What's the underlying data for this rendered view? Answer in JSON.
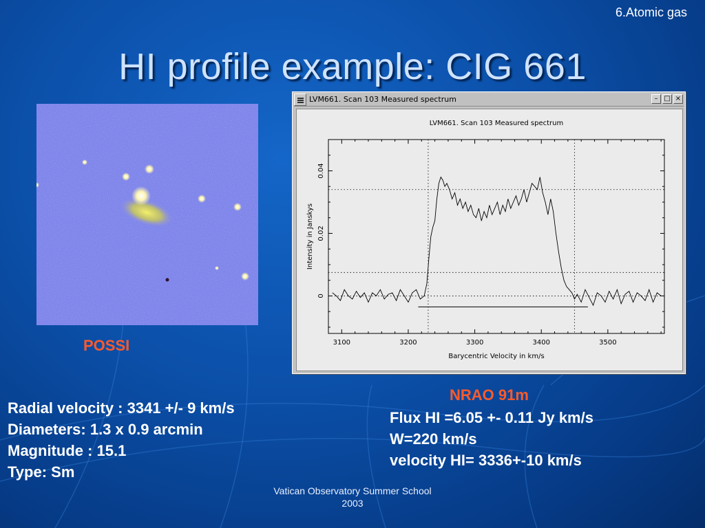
{
  "slide": {
    "section": "6.Atomic gas",
    "title": "HI profile example: CIG 661",
    "footer_line1": "Vatican Observatory Summer School",
    "footer_line2": "2003"
  },
  "image_panel": {
    "caption": "POSSI"
  },
  "window": {
    "title": "LVM661.  Scan 103  Measured spectrum",
    "minimize_glyph": "–",
    "maximize_glyph": "□",
    "close_glyph": "×"
  },
  "chart_data": {
    "type": "line",
    "title": "LVM661.  Scan 103  Measured spectrum",
    "xlabel": "Barycentric Velocity in km/s",
    "ylabel": "Intensity in Janskys",
    "xlim": [
      3080,
      3585
    ],
    "ylim": [
      -0.012,
      0.05
    ],
    "xticks": [
      3100,
      3200,
      3300,
      3400,
      3500
    ],
    "xtick_labels": [
      "3100",
      "3200",
      "3300",
      "3400",
      "3500"
    ],
    "yticks": [
      0,
      0.02,
      0.04
    ],
    "ytick_labels": [
      "0",
      "0.02",
      "0.04"
    ],
    "vertical_markers": [
      3230,
      3450
    ],
    "horizontal_markers": [
      0.034,
      0.0075
    ],
    "baseline_segment": {
      "x": [
        3215,
        3470
      ],
      "y": -0.0035
    },
    "series": [
      {
        "x": [
          3086,
          3092,
          3098,
          3104,
          3110,
          3116,
          3122,
          3128,
          3134,
          3140,
          3146,
          3152,
          3158,
          3164,
          3170,
          3176,
          3182,
          3188,
          3194,
          3200,
          3206,
          3212,
          3218,
          3224,
          3228,
          3231,
          3234,
          3237,
          3240,
          3243,
          3246,
          3249,
          3252,
          3255,
          3258,
          3262,
          3266,
          3270,
          3274,
          3278,
          3282,
          3286,
          3290,
          3294,
          3298,
          3302,
          3306,
          3310,
          3314,
          3318,
          3322,
          3326,
          3330,
          3334,
          3338,
          3342,
          3346,
          3350,
          3354,
          3358,
          3362,
          3366,
          3370,
          3374,
          3378,
          3382,
          3386,
          3390,
          3394,
          3398,
          3402,
          3406,
          3410,
          3414,
          3418,
          3422,
          3426,
          3430,
          3434,
          3438,
          3442,
          3446,
          3450,
          3454,
          3460,
          3466,
          3472,
          3478,
          3484,
          3490,
          3496,
          3502,
          3508,
          3514,
          3520,
          3526,
          3532,
          3538,
          3544,
          3550,
          3556,
          3562,
          3568,
          3574,
          3580
        ],
        "values": [
          0.001,
          0.0,
          -0.0015,
          0.002,
          0.0,
          -0.001,
          0.0015,
          -0.0005,
          0.001,
          -0.002,
          0.001,
          0.0,
          0.002,
          -0.001,
          0.0005,
          0.001,
          -0.0015,
          0.002,
          0.0,
          -0.002,
          0.001,
          0.002,
          -0.001,
          0.0,
          0.004,
          0.012,
          0.019,
          0.022,
          0.024,
          0.031,
          0.036,
          0.038,
          0.037,
          0.035,
          0.036,
          0.034,
          0.031,
          0.033,
          0.029,
          0.031,
          0.028,
          0.03,
          0.027,
          0.029,
          0.026,
          0.025,
          0.028,
          0.024,
          0.027,
          0.025,
          0.029,
          0.026,
          0.028,
          0.03,
          0.026,
          0.029,
          0.027,
          0.031,
          0.028,
          0.03,
          0.032,
          0.029,
          0.031,
          0.034,
          0.03,
          0.033,
          0.036,
          0.035,
          0.034,
          0.038,
          0.033,
          0.03,
          0.026,
          0.031,
          0.027,
          0.02,
          0.014,
          0.009,
          0.005,
          0.003,
          0.002,
          0.001,
          -0.001,
          0.0005,
          -0.002,
          0.002,
          -0.0005,
          -0.003,
          0.001,
          0.0,
          -0.002,
          0.0015,
          -0.001,
          0.002,
          -0.0025,
          0.0005,
          0.0015,
          -0.002,
          0.001,
          0.0,
          -0.0015,
          0.002,
          -0.002,
          0.001,
          0.0
        ]
      }
    ]
  },
  "telescope_label": "NRAO 91m",
  "left_info": [
    "Radial velocity : 3341 +/- 9 km/s",
    "Diameters: 1.3 x 0.9 arcmin",
    "Magnitude : 15.1",
    "Type: Sm"
  ],
  "right_info": [
    "Flux HI =6.05 +- 0.11 Jy km/s",
    "W=220 km/s",
    "velocity HI= 3336+-10 km/s"
  ]
}
